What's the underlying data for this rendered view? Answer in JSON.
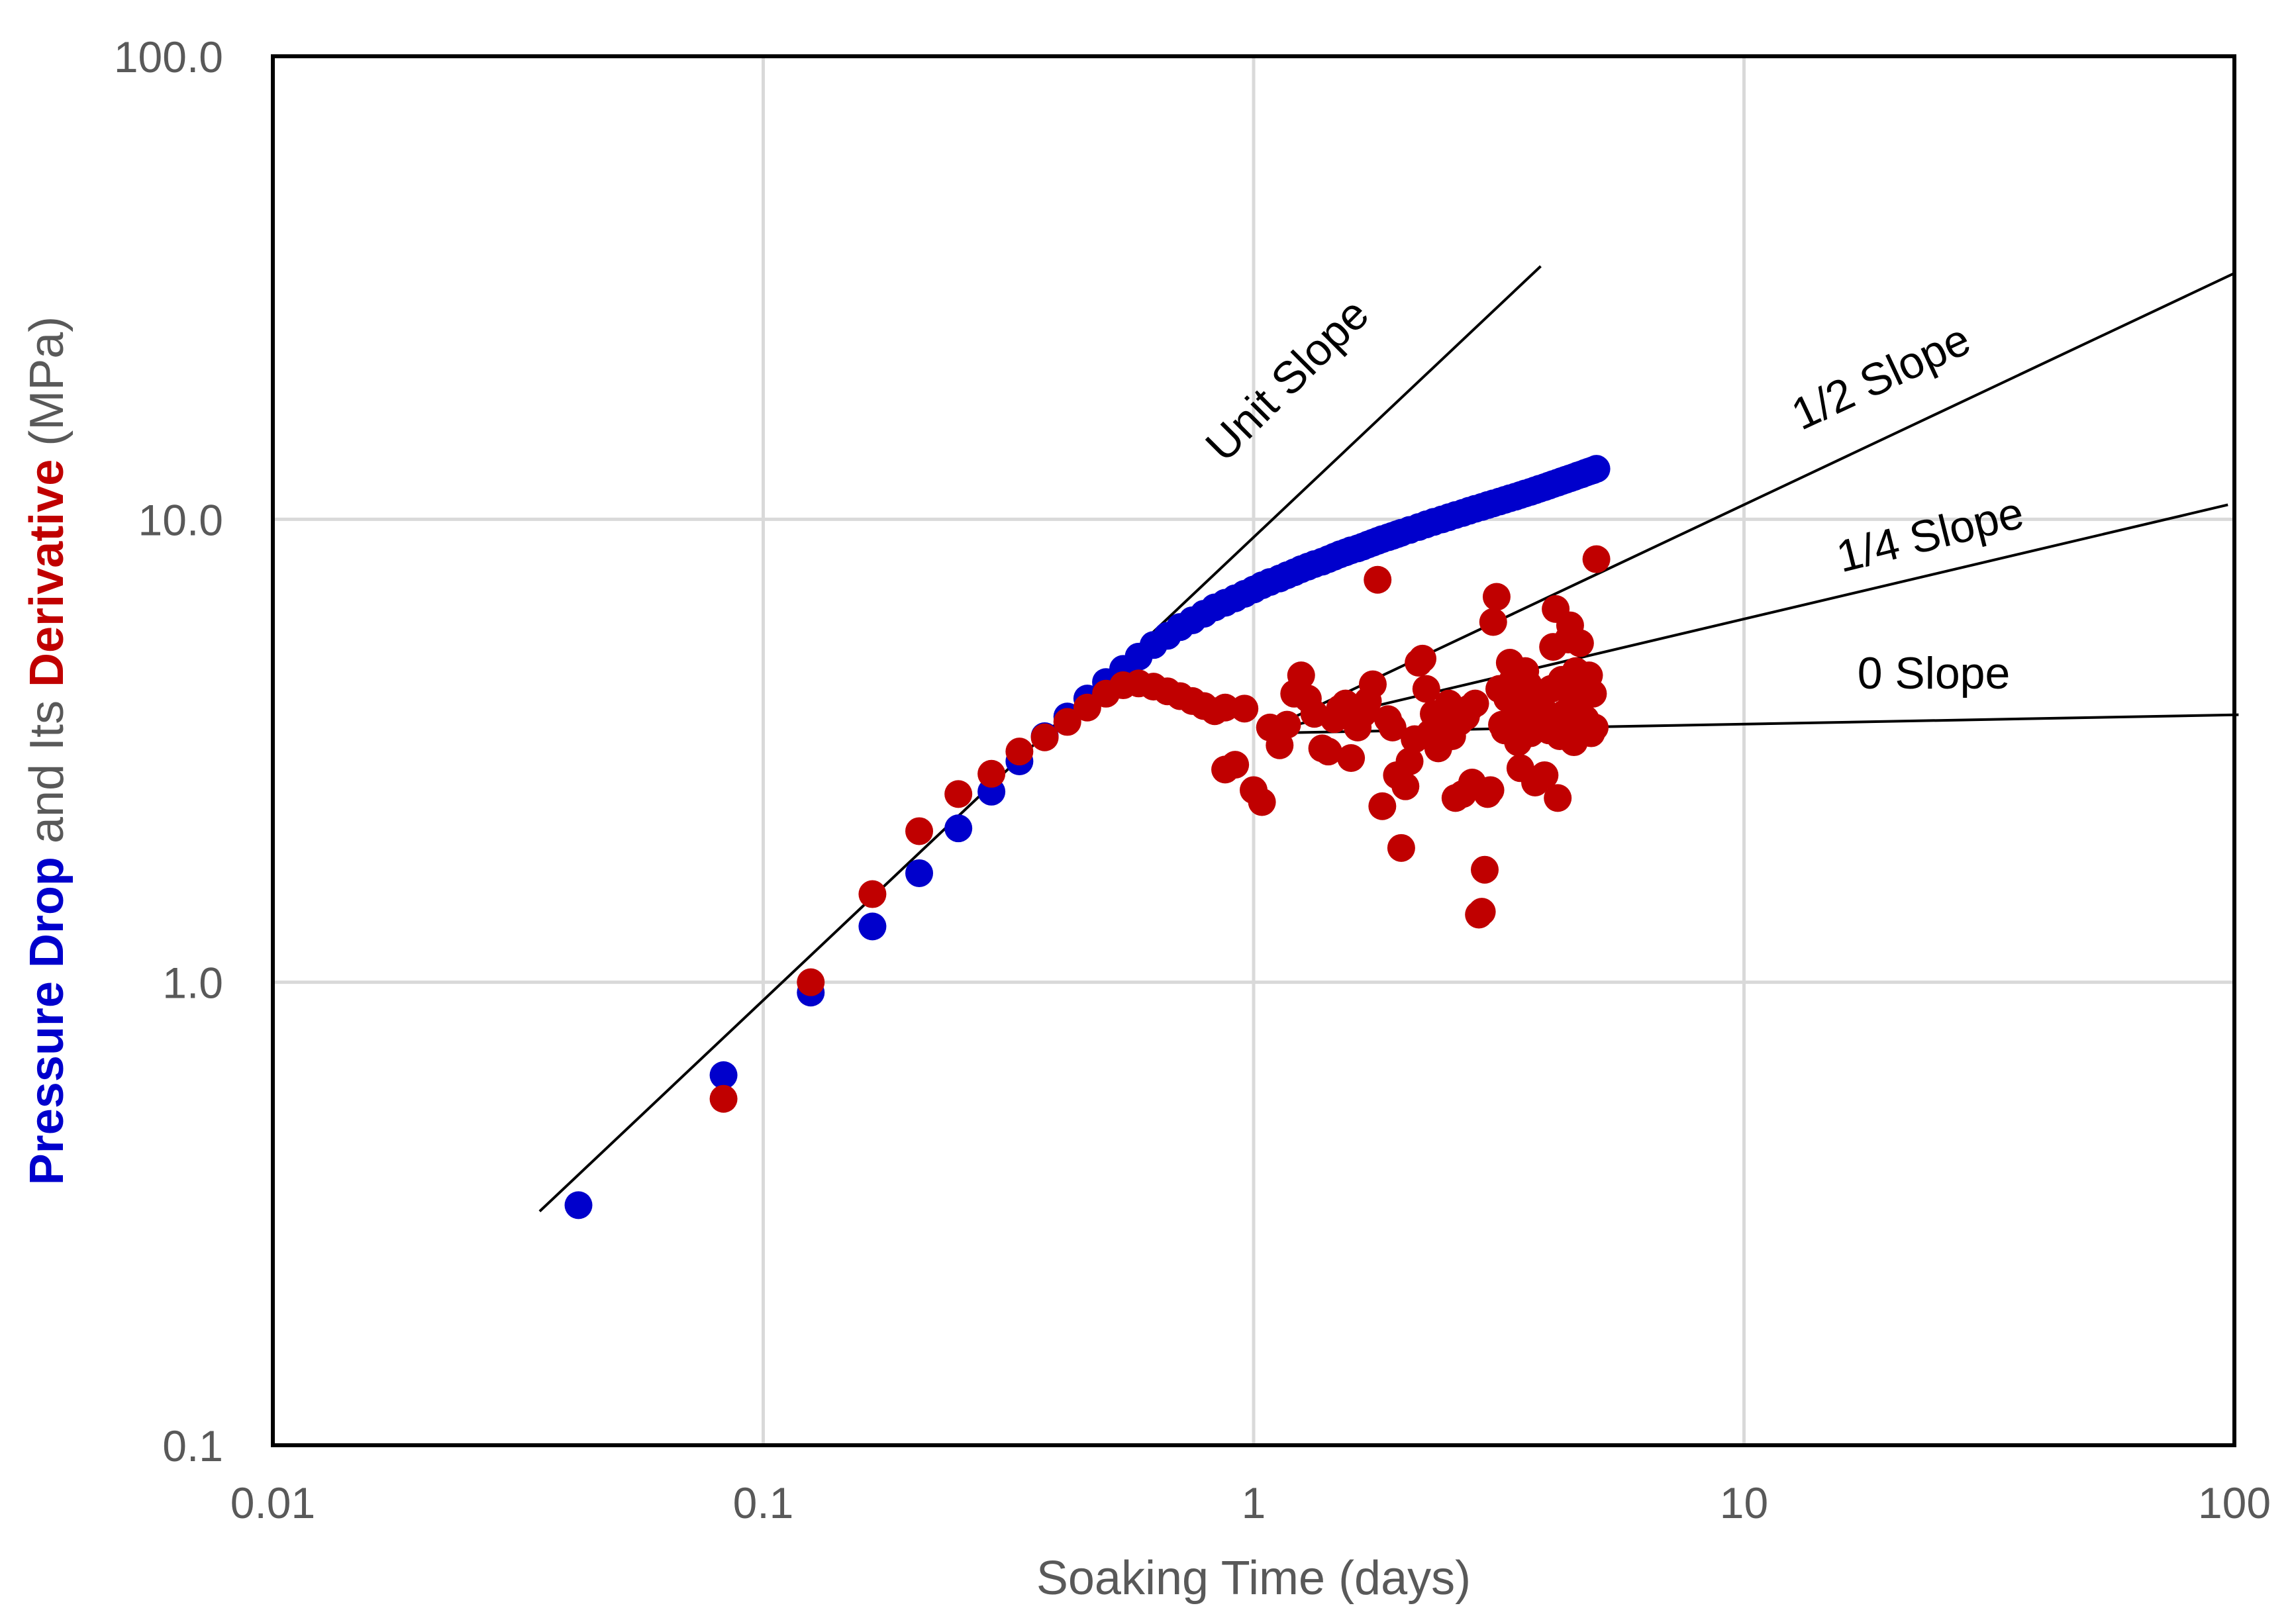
{
  "chart_data": {
    "type": "scatter",
    "x_scale": "log",
    "y_scale": "log",
    "xlim": [
      0.01,
      100
    ],
    "ylim": [
      0.1,
      100
    ],
    "x_ticks": [
      "0.01",
      "0.1",
      "1",
      "10",
      "100"
    ],
    "y_ticks": [
      "0.1",
      "1.0",
      "10.0",
      "100.0"
    ],
    "xlabel": "Soaking Time (days)",
    "ylabel_parts": [
      {
        "text": "Pressure Drop",
        "color": "#0000cc",
        "bold": true
      },
      {
        "text": " and Its ",
        "color": "#595959",
        "bold": false
      },
      {
        "text": "Derivative",
        "color": "#c00000",
        "bold": true
      },
      {
        "text": " (MPa)",
        "color": "#595959",
        "bold": false
      }
    ],
    "grid": true,
    "legend": "none",
    "colors": {
      "pressure_drop": "#0000cc",
      "derivative": "#c00000",
      "frame": "#000000",
      "grid": "#d9d9d9",
      "tick_text": "#595959"
    },
    "series": [
      {
        "key": "pressure_drop",
        "color": "#0000cc",
        "points": [
          [
            0.042,
            0.33
          ],
          [
            0.083,
            0.63
          ],
          [
            0.125,
            0.95
          ],
          [
            0.167,
            1.32
          ],
          [
            0.208,
            1.72
          ],
          [
            0.25,
            2.15
          ],
          [
            0.292,
            2.58
          ],
          [
            0.333,
            3.0
          ],
          [
            0.375,
            3.4
          ],
          [
            0.417,
            3.75
          ],
          [
            0.458,
            4.1
          ],
          [
            0.5,
            4.45
          ],
          [
            0.542,
            4.75
          ],
          [
            0.583,
            5.05
          ],
          [
            0.625,
            5.35
          ],
          [
            0.667,
            5.6
          ],
          [
            0.708,
            5.85
          ],
          [
            0.75,
            6.05
          ],
          [
            0.792,
            6.25
          ],
          [
            0.833,
            6.45
          ],
          [
            0.875,
            6.6
          ],
          [
            0.917,
            6.75
          ],
          [
            0.958,
            6.9
          ],
          [
            1.0,
            7.05
          ],
          [
            1.04,
            7.2
          ],
          [
            1.08,
            7.32
          ],
          [
            1.13,
            7.45
          ],
          [
            1.17,
            7.57
          ],
          [
            1.21,
            7.68
          ],
          [
            1.25,
            7.8
          ],
          [
            1.29,
            7.9
          ],
          [
            1.33,
            8.0
          ],
          [
            1.38,
            8.1
          ],
          [
            1.42,
            8.2
          ],
          [
            1.46,
            8.3
          ],
          [
            1.5,
            8.4
          ],
          [
            1.54,
            8.48
          ],
          [
            1.58,
            8.57
          ],
          [
            1.63,
            8.65
          ],
          [
            1.67,
            8.73
          ],
          [
            1.71,
            8.82
          ],
          [
            1.75,
            8.9
          ],
          [
            1.79,
            8.98
          ],
          [
            1.83,
            9.06
          ],
          [
            1.88,
            9.14
          ],
          [
            1.92,
            9.21
          ],
          [
            1.96,
            9.28
          ],
          [
            2.0,
            9.35
          ],
          [
            2.08,
            9.48
          ],
          [
            2.17,
            9.62
          ],
          [
            2.25,
            9.75
          ],
          [
            2.33,
            9.87
          ],
          [
            2.42,
            9.99
          ],
          [
            2.5,
            10.1
          ],
          [
            2.58,
            10.21
          ],
          [
            2.67,
            10.32
          ],
          [
            2.75,
            10.43
          ],
          [
            2.83,
            10.53
          ],
          [
            2.92,
            10.63
          ],
          [
            3.0,
            10.73
          ],
          [
            3.08,
            10.82
          ],
          [
            3.17,
            10.92
          ],
          [
            3.25,
            11.01
          ],
          [
            3.33,
            11.1
          ],
          [
            3.42,
            11.19
          ],
          [
            3.5,
            11.28
          ],
          [
            3.58,
            11.37
          ],
          [
            3.67,
            11.46
          ],
          [
            3.75,
            11.55
          ],
          [
            3.83,
            11.64
          ],
          [
            3.92,
            11.73
          ],
          [
            4.0,
            11.82
          ],
          [
            4.08,
            11.91
          ],
          [
            4.17,
            12.0
          ],
          [
            4.25,
            12.09
          ],
          [
            4.33,
            12.17
          ],
          [
            4.42,
            12.26
          ],
          [
            4.5,
            12.34
          ],
          [
            4.58,
            12.43
          ],
          [
            4.67,
            12.51
          ],
          [
            4.75,
            12.6
          ],
          [
            4.83,
            12.68
          ],
          [
            4.92,
            12.76
          ],
          [
            5.0,
            12.85
          ]
        ]
      },
      {
        "key": "derivative",
        "color": "#c00000",
        "points": [
          [
            0.083,
            0.56
          ],
          [
            0.125,
            1.0
          ],
          [
            0.167,
            1.55
          ],
          [
            0.208,
            2.12
          ],
          [
            0.25,
            2.55
          ],
          [
            0.292,
            2.82
          ],
          [
            0.333,
            3.15
          ],
          [
            0.375,
            3.38
          ],
          [
            0.417,
            3.65
          ],
          [
            0.458,
            3.92
          ],
          [
            0.5,
            4.2
          ],
          [
            0.542,
            4.38
          ],
          [
            0.583,
            4.42
          ],
          [
            0.625,
            4.35
          ],
          [
            0.667,
            4.25
          ],
          [
            0.708,
            4.15
          ],
          [
            0.75,
            4.05
          ],
          [
            0.792,
            3.95
          ],
          [
            0.833,
            3.85
          ],
          [
            0.875,
            3.92
          ],
          [
            0.875,
            2.88
          ],
          [
            0.917,
            2.95
          ],
          [
            0.958,
            3.9
          ],
          [
            1.0,
            2.6
          ],
          [
            1.04,
            2.45
          ],
          [
            1.08,
            3.55
          ],
          [
            1.13,
            3.25
          ],
          [
            1.17,
            3.6
          ],
          [
            1.21,
            4.2
          ],
          [
            1.25,
            4.6
          ],
          [
            1.29,
            4.1
          ],
          [
            1.33,
            3.8
          ],
          [
            1.38,
            3.2
          ],
          [
            1.42,
            3.15
          ],
          [
            1.46,
            3.7
          ],
          [
            1.5,
            3.9
          ],
          [
            1.54,
            4.0
          ],
          [
            1.58,
            3.05
          ],
          [
            1.63,
            3.55
          ],
          [
            1.67,
            3.8
          ],
          [
            1.71,
            4.05
          ],
          [
            1.75,
            4.4
          ],
          [
            1.79,
            7.4
          ],
          [
            1.83,
            2.4
          ],
          [
            1.88,
            3.7
          ],
          [
            1.92,
            3.55
          ],
          [
            1.96,
            2.8
          ],
          [
            2.0,
            1.95
          ],
          [
            2.04,
            2.65
          ],
          [
            2.08,
            3.0
          ],
          [
            2.13,
            3.35
          ],
          [
            2.17,
            4.9
          ],
          [
            2.21,
            5.0
          ],
          [
            2.25,
            4.3
          ],
          [
            2.29,
            3.45
          ],
          [
            2.33,
            3.8
          ],
          [
            2.38,
            3.2
          ],
          [
            2.42,
            3.6
          ],
          [
            2.46,
            3.7
          ],
          [
            2.5,
            4.0
          ],
          [
            2.54,
            3.4
          ],
          [
            2.58,
            2.5
          ],
          [
            2.63,
            3.65
          ],
          [
            2.67,
            2.55
          ],
          [
            2.71,
            3.75
          ],
          [
            2.75,
            3.9
          ],
          [
            2.79,
            2.7
          ],
          [
            2.83,
            4.0
          ],
          [
            2.88,
            1.4
          ],
          [
            2.92,
            1.42
          ],
          [
            2.96,
            1.75
          ],
          [
            3.0,
            2.55
          ],
          [
            3.04,
            2.6
          ],
          [
            3.08,
            6.0
          ],
          [
            3.13,
            6.8
          ],
          [
            3.17,
            4.3
          ],
          [
            3.21,
            3.6
          ],
          [
            3.25,
            3.5
          ],
          [
            3.29,
            4.1
          ],
          [
            3.33,
            4.9
          ],
          [
            3.38,
            4.5
          ],
          [
            3.42,
            3.75
          ],
          [
            3.46,
            3.3
          ],
          [
            3.5,
            2.9
          ],
          [
            3.54,
            3.9
          ],
          [
            3.58,
            4.7
          ],
          [
            3.63,
            4.4
          ],
          [
            3.67,
            3.45
          ],
          [
            3.71,
            3.8
          ],
          [
            3.75,
            2.7
          ],
          [
            3.79,
            3.65
          ],
          [
            3.83,
            4.2
          ],
          [
            3.88,
            3.9
          ],
          [
            3.92,
            2.8
          ],
          [
            3.96,
            3.7
          ],
          [
            4.0,
            3.5
          ],
          [
            4.04,
            4.3
          ],
          [
            4.08,
            5.3
          ],
          [
            4.13,
            6.4
          ],
          [
            4.17,
            2.5
          ],
          [
            4.21,
            3.4
          ],
          [
            4.25,
            4.5
          ],
          [
            4.29,
            3.8
          ],
          [
            4.33,
            3.6
          ],
          [
            4.38,
            5.5
          ],
          [
            4.42,
            5.9
          ],
          [
            4.46,
            4.0
          ],
          [
            4.5,
            3.3
          ],
          [
            4.54,
            4.7
          ],
          [
            4.58,
            3.9
          ],
          [
            4.63,
            5.4
          ],
          [
            4.67,
            3.5
          ],
          [
            4.71,
            4.4
          ],
          [
            4.75,
            3.7
          ],
          [
            4.79,
            3.6
          ],
          [
            4.83,
            4.6
          ],
          [
            4.88,
            3.45
          ],
          [
            4.92,
            4.2
          ],
          [
            4.96,
            3.55
          ],
          [
            5.0,
            8.2
          ]
        ]
      }
    ],
    "reference_lines": [
      {
        "label": "Unit Slope",
        "slope": 1,
        "x_start": 0.035,
        "x_end": 3.85,
        "y_start": 0.32
      },
      {
        "label": "1/2 Slope",
        "slope": 0.5,
        "x_start": 1.03,
        "x_end": 100,
        "y_start": 3.45
      },
      {
        "label": "1/4 Slope",
        "slope": 0.25,
        "x_start": 1.03,
        "x_end": 97,
        "y_start": 3.45
      },
      {
        "label": "0 Slope",
        "slope": 0.02,
        "x_start": 1.03,
        "x_end": 102,
        "y_start": 3.45
      }
    ]
  }
}
